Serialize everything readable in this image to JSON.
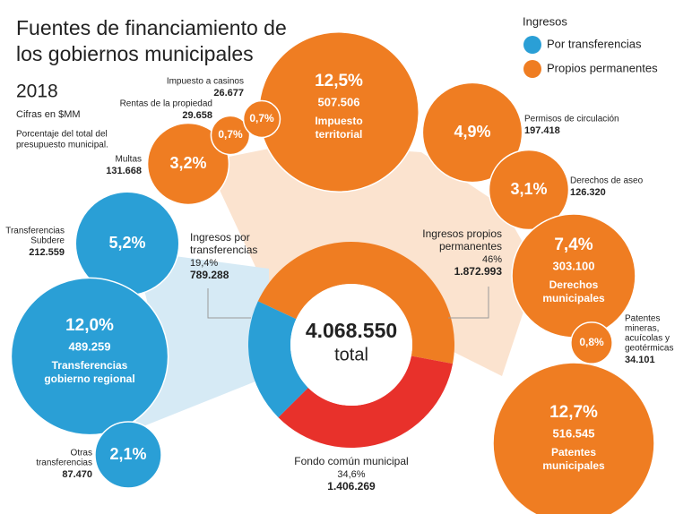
{
  "title_lines": [
    "Fuentes de financiamiento de",
    "los gobiernos municipales"
  ],
  "year": "2018",
  "unit": "Cifras en $MM",
  "note_lines": [
    "Porcentaje del total del",
    "presupuesto municipal."
  ],
  "legend": {
    "title": "Ingresos",
    "items": [
      {
        "label": "Por transferencias",
        "color": "#2a9fd6"
      },
      {
        "label": "Propios permanentes",
        "color": "#ef7d22"
      }
    ]
  },
  "chart_data": {
    "type": "donut",
    "total_label": "4.068.550",
    "center_text": "total",
    "segments": [
      {
        "name_lines": [
          "Ingresos propios",
          "permanentes"
        ],
        "percent": {
          "value": 46,
          "label": "46%"
        },
        "amount_label": "1.872.993",
        "color": "#ef7d22"
      },
      {
        "name_lines": [
          "Fondo común municipal"
        ],
        "percent": {
          "value": 34.6,
          "label": "34,6%"
        },
        "amount_label": "1.406.269",
        "color": "#e8312b"
      },
      {
        "name_lines": [
          "Ingresos por",
          "transferencias"
        ],
        "percent": {
          "value": 19.4,
          "label": "19,4%"
        },
        "amount_label": "789.288",
        "color": "#2a9fd6"
      }
    ]
  },
  "bubbles": [
    {
      "name_lines": [
        "Impuesto",
        "territorial"
      ],
      "percent_label": "12,5%",
      "amount": 507506,
      "amount_label": "507.506",
      "color": "#ef7d22"
    },
    {
      "name_lines": [
        "Permisos de circulación"
      ],
      "percent_label": "4,9%",
      "amount": 197418,
      "amount_label": "197.418",
      "color": "#ef7d22"
    },
    {
      "name_lines": [
        "Derechos de aseo"
      ],
      "percent_label": "3,1%",
      "amount": 126320,
      "amount_label": "126.320",
      "color": "#ef7d22"
    },
    {
      "name_lines": [
        "Derechos",
        "municipales"
      ],
      "percent_label": "7,4%",
      "amount": 303100,
      "amount_label": "303.100",
      "color": "#ef7d22"
    },
    {
      "name_lines": [
        "Patentes",
        "mineras,",
        "acuícolas y",
        "geotérmicas"
      ],
      "percent_label": "0,8%",
      "amount": 34101,
      "amount_label": "34.101",
      "color": "#ef7d22"
    },
    {
      "name_lines": [
        "Patentes",
        "municipales"
      ],
      "percent_label": "12,7%",
      "amount": 516545,
      "amount_label": "516.545",
      "color": "#ef7d22"
    },
    {
      "name_lines": [
        "Multas"
      ],
      "percent_label": "3,2%",
      "amount": 131668,
      "amount_label": "131.668",
      "color": "#ef7d22"
    },
    {
      "name_lines": [
        "Rentas de la propiedad"
      ],
      "percent_label": "0,7%",
      "amount": 29658,
      "amount_label": "29.658",
      "color": "#ef7d22"
    },
    {
      "name_lines": [
        "Impuesto a casinos"
      ],
      "percent_label": "0,7%",
      "amount": 26677,
      "amount_label": "26.677",
      "color": "#ef7d22"
    },
    {
      "name_lines": [
        "Transferencias",
        "Subdere"
      ],
      "percent_label": "5,2%",
      "amount": 212559,
      "amount_label": "212.559",
      "color": "#2a9fd6"
    },
    {
      "name_lines": [
        "Transferencias",
        "gobierno regional"
      ],
      "percent_label": "12,0%",
      "amount": 489259,
      "amount_label": "489.259",
      "color": "#2a9fd6"
    },
    {
      "name_lines": [
        "Otras",
        "transferencias"
      ],
      "percent_label": "2,1%",
      "amount": 87470,
      "amount_label": "87.470",
      "color": "#2a9fd6"
    }
  ]
}
